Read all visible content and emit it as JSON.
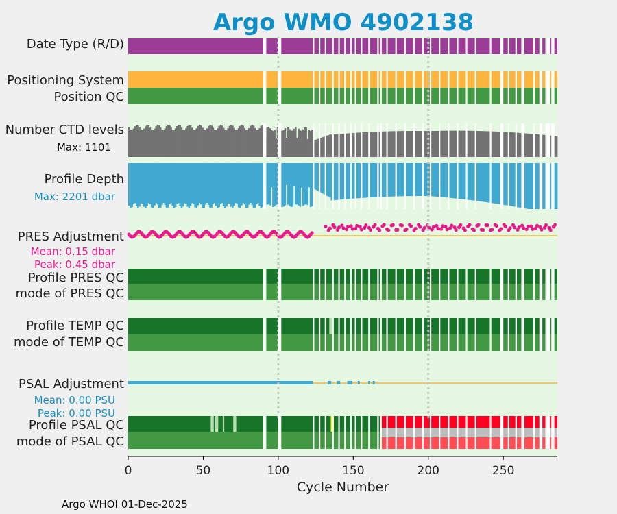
{
  "chart_data": {
    "type": "bar",
    "title": "Argo WMO 4902138",
    "xlabel": "Cycle Number",
    "xlim": [
      0,
      286
    ],
    "xticks": [
      0,
      50,
      100,
      150,
      200,
      250
    ],
    "xtick_labels": [
      "0",
      "50",
      "100",
      "150",
      "200",
      "250"
    ],
    "vertical_markers": [
      100,
      200
    ],
    "missing_cycles": [
      90,
      91,
      100,
      101,
      123,
      127,
      131,
      136,
      140,
      144,
      148,
      151,
      155,
      160,
      166,
      168,
      172,
      178,
      184,
      190,
      196,
      201,
      207,
      213,
      219,
      225,
      231,
      241,
      248,
      249,
      253,
      258,
      262,
      263,
      270,
      274,
      275,
      278,
      279,
      280,
      282,
      283
    ],
    "rows": [
      {
        "label": "Date Type (R/D)",
        "colors": [
          "#9b3d96"
        ]
      },
      {
        "label": "Positioning System",
        "colors": [
          "#fdb53e"
        ]
      },
      {
        "label": "Position QC",
        "colors": [
          "#429843"
        ]
      },
      {
        "label": "Number CTD levels",
        "sublabel": "Max: 1101",
        "color": "#737373"
      },
      {
        "label": "Profile Depth",
        "sublabel": "Max: 2201 dbar",
        "color": "#41a8d0"
      },
      {
        "label": "PRES Adjustment",
        "sublabels": [
          "Mean: 0.15 dbar",
          "Peak: 0.45 dbar"
        ],
        "color": "#e8198c"
      },
      {
        "label": "Profile PRES QC",
        "color": "#17752a"
      },
      {
        "label": "mode of PRES QC",
        "color": "#429843"
      },
      {
        "label": "Profile TEMP QC",
        "color": "#17752a"
      },
      {
        "label": "mode of TEMP QC",
        "color": "#429843"
      },
      {
        "label": "PSAL Adjustment",
        "sublabels": [
          "Mean: 0.00 PSU",
          "Peak: 0.00 PSU"
        ],
        "color": "#41a8d0"
      },
      {
        "label": "Profile PSAL QC",
        "colors": [
          "#17752a",
          "#ff0022"
        ]
      },
      {
        "label": "mode of PSAL QC",
        "colors": [
          "#429843",
          "#ff4d54"
        ]
      }
    ],
    "ctd_levels_max": 1101,
    "profile_depth_max_dbar": 2201,
    "pres_adjustment": {
      "mean_dbar": 0.15,
      "peak_dbar": 0.45
    },
    "psal_adjustment": {
      "mean_psu": 0.0,
      "peak_psu": 0.0
    },
    "psal_qc_bad_from_cycle": 168
  },
  "labels": {
    "row_date_type": "Date Type (R/D)",
    "row_pos_system": "Positioning System",
    "row_pos_qc": "Position QC",
    "row_ctd": "Number CTD levels",
    "row_ctd_max": "Max: 1101",
    "row_depth": "Profile Depth",
    "row_depth_max": "Max: 2201 dbar",
    "row_pres_adj": "PRES Adjustment",
    "row_pres_mean": "Mean: 0.15 dbar",
    "row_pres_peak": "Peak: 0.45 dbar",
    "row_pres_qc": "Profile PRES QC",
    "row_pres_mode": "mode of PRES QC",
    "row_temp_qc": "Profile TEMP QC",
    "row_temp_mode": "mode of TEMP QC",
    "row_psal_adj": "PSAL Adjustment",
    "row_psal_mean": "Mean: 0.00 PSU",
    "row_psal_peak": "Peak: 0.00 PSU",
    "row_psal_qc": "Profile PSAL QC",
    "row_psal_mode": "mode of PSAL QC"
  },
  "colors": {
    "plot_bg": "#e5f8e1",
    "magenta_label": "#e8198c",
    "blue_label": "#1a8fc0",
    "adjust_line": "#f5b642",
    "qc_grey": "#bdbdbd",
    "qc_yellow": "#f4f62b",
    "qc_light": "#b9dcb1"
  },
  "footer": "Argo WHOI 01-Dec-2025"
}
